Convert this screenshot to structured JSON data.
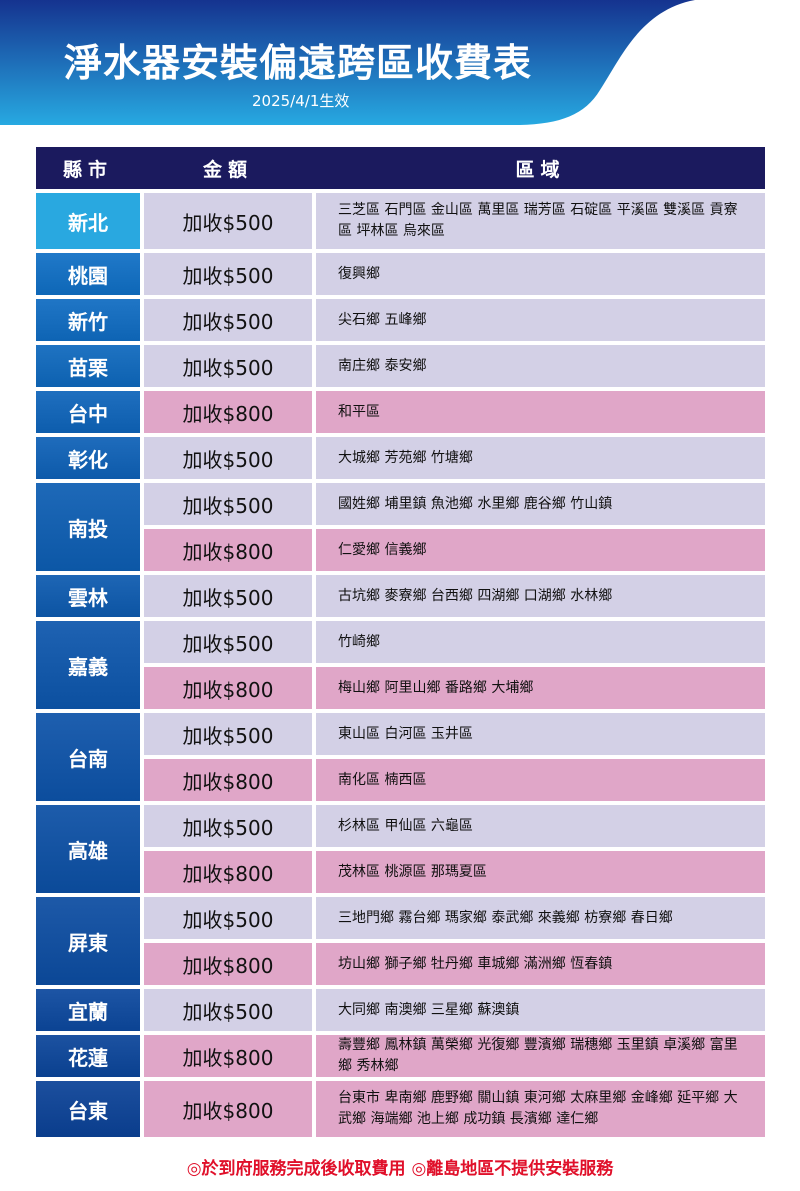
{
  "header": {
    "title": "淨水器安裝偏遠跨區收費表",
    "subtitle": "2025/4/1生效"
  },
  "colors": {
    "header_bg": "#1b1a5e",
    "price_500_bg": "#d3d0e6",
    "price_800_bg": "#e0a6c8",
    "county_top": "#29a8e0",
    "county_bottom": "#1c4f9e",
    "footer_text": "#e0102a"
  },
  "table": {
    "columns": [
      "縣市",
      "金額",
      "區域"
    ],
    "groups": [
      {
        "county": "新北",
        "rows": [
          {
            "price": "加收$500",
            "areas": "三芝區 石門區 金山區 萬里區 瑞芳區 石碇區 平溪區 雙溪區 貢寮區 坪林區 烏來區"
          }
        ]
      },
      {
        "county": "桃園",
        "rows": [
          {
            "price": "加收$500",
            "areas": "復興鄉"
          }
        ]
      },
      {
        "county": "新竹",
        "rows": [
          {
            "price": "加收$500",
            "areas": "尖石鄉 五峰鄉"
          }
        ]
      },
      {
        "county": "苗栗",
        "rows": [
          {
            "price": "加收$500",
            "areas": "南庄鄉 泰安鄉"
          }
        ]
      },
      {
        "county": "台中",
        "rows": [
          {
            "price": "加收$800",
            "areas": "和平區"
          }
        ]
      },
      {
        "county": "彰化",
        "rows": [
          {
            "price": "加收$500",
            "areas": "大城鄉 芳苑鄉 竹塘鄉"
          }
        ]
      },
      {
        "county": "南投",
        "rows": [
          {
            "price": "加收$500",
            "areas": "國姓鄉 埔里鎮 魚池鄉 水里鄉 鹿谷鄉 竹山鎮"
          },
          {
            "price": "加收$800",
            "areas": "仁愛鄉 信義鄉"
          }
        ]
      },
      {
        "county": "雲林",
        "rows": [
          {
            "price": "加收$500",
            "areas": "古坑鄉 麥寮鄉 台西鄉 四湖鄉 口湖鄉 水林鄉"
          }
        ]
      },
      {
        "county": "嘉義",
        "rows": [
          {
            "price": "加收$500",
            "areas": "竹崎鄉"
          },
          {
            "price": "加收$800",
            "areas": "梅山鄉 阿里山鄉 番路鄉 大埔鄉"
          }
        ]
      },
      {
        "county": "台南",
        "rows": [
          {
            "price": "加收$500",
            "areas": "東山區 白河區 玉井區"
          },
          {
            "price": "加收$800",
            "areas": "南化區 楠西區"
          }
        ]
      },
      {
        "county": "高雄",
        "rows": [
          {
            "price": "加收$500",
            "areas": "杉林區 甲仙區 六龜區"
          },
          {
            "price": "加收$800",
            "areas": "茂林區 桃源區 那瑪夏區"
          }
        ]
      },
      {
        "county": "屏東",
        "rows": [
          {
            "price": "加收$500",
            "areas": "三地門鄉 霧台鄉 瑪家鄉 泰武鄉 來義鄉 枋寮鄉 春日鄉"
          },
          {
            "price": "加收$800",
            "areas": "坊山鄉 獅子鄉 牡丹鄉 車城鄉 滿洲鄉 恆春鎮"
          }
        ]
      },
      {
        "county": "宜蘭",
        "rows": [
          {
            "price": "加收$500",
            "areas": "大同鄉 南澳鄉 三星鄉 蘇澳鎮"
          }
        ]
      },
      {
        "county": "花蓮",
        "rows": [
          {
            "price": "加收$800",
            "areas": "壽豐鄉 鳳林鎮 萬榮鄉 光復鄉 豐濱鄉 瑞穗鄉 玉里鎮 卓溪鄉 富里鄉 秀林鄉"
          }
        ]
      },
      {
        "county": "台東",
        "rows": [
          {
            "price": "加收$800",
            "areas": "台東市 卑南鄉 鹿野鄉 關山鎮 東河鄉 太麻里鄉 金峰鄉 延平鄉 大武鄉 海端鄉 池上鄉 成功鎮 長濱鄉 達仁鄉"
          }
        ]
      }
    ]
  },
  "footer": "◎於到府服務完成後收取費用 ◎離島地區不提供安裝服務"
}
